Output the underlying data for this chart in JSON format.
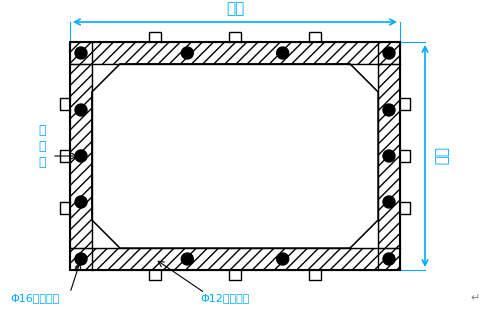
{
  "bg_color": "#ffffff",
  "dim_color": "#00aaff",
  "label_color": "#00aaff",
  "top_label": "柱宽",
  "right_label": "柱宽",
  "bottom_left_label": "Φ16锂筋制作",
  "bottom_mid_label": "Φ12锂筋制作",
  "side_label": "柱\n锂\n筋",
  "note_char": "↵"
}
